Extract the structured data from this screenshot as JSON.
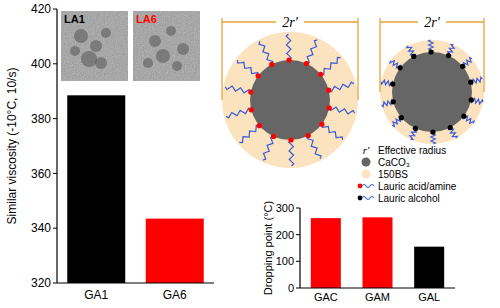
{
  "chart_data": [
    {
      "type": "bar",
      "y_label": "Similar viscosity (-10°C, 10/s)",
      "categories": [
        "GA1",
        "GA6"
      ],
      "values": [
        388.5,
        343.5
      ],
      "colors": [
        "#000000",
        "#ff0000"
      ],
      "ylim": [
        320,
        420
      ],
      "yticks": [
        320,
        340,
        360,
        380,
        400,
        420
      ]
    },
    {
      "type": "bar",
      "y_label": "Dropping point (°C)",
      "categories": [
        "GAC",
        "GAM",
        "GAL"
      ],
      "values": [
        262,
        265,
        155
      ],
      "colors": [
        "#ff0000",
        "#ff0000",
        "#000000"
      ],
      "ylim": [
        0,
        300
      ],
      "yticks": [
        0,
        100,
        200,
        300
      ]
    }
  ],
  "insets": [
    {
      "label": "LA1",
      "color": "#000000"
    },
    {
      "label": "LA6",
      "color": "#ff0000"
    }
  ],
  "diagram": {
    "dimension_labels": [
      "2r′",
      "2r′"
    ],
    "legend": [
      {
        "symbol": "r′",
        "label": "Effective radius"
      },
      {
        "label": "CaCO₃"
      },
      {
        "label": "150BS"
      },
      {
        "label": "Lauric acid/amine"
      },
      {
        "label": "Lauric alcohol"
      }
    ]
  }
}
